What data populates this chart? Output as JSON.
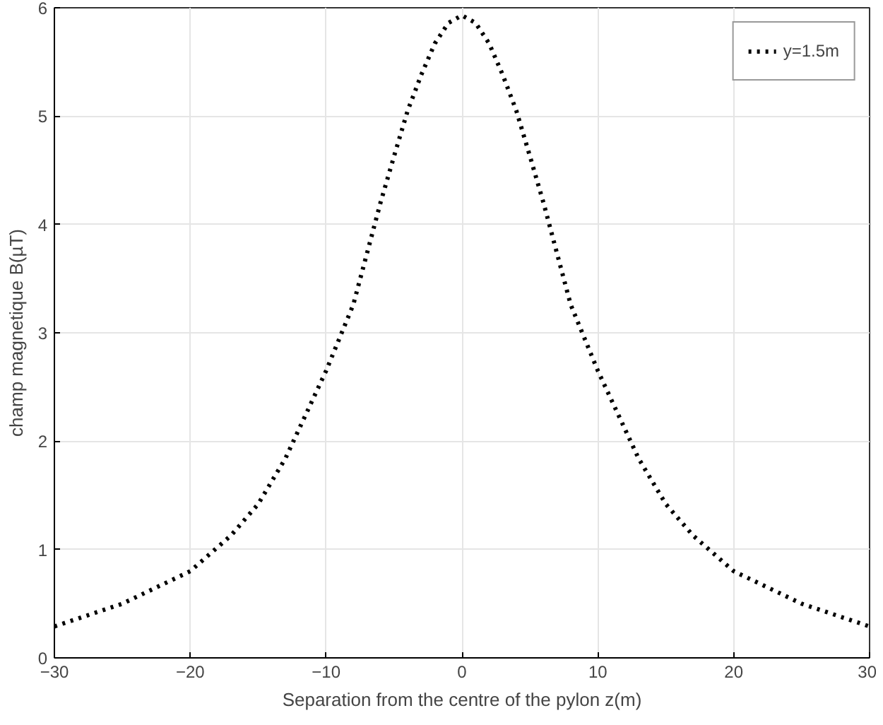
{
  "chart_data": {
    "type": "line",
    "xlabel": "Separation from the centre of the pylon z(m)",
    "ylabel": "champ magnetique B(µT)",
    "xlim": [
      -30,
      30
    ],
    "ylim": [
      0,
      6
    ],
    "xticks": [
      -30,
      -20,
      -10,
      0,
      10,
      20,
      30
    ],
    "yticks": [
      0,
      1,
      2,
      3,
      4,
      5,
      6
    ],
    "grid": true,
    "legend": "top right",
    "line_style": "dotted",
    "marker": "none",
    "series": [
      {
        "name": "y=1.5m",
        "color": "#000000",
        "x": [
          -30,
          -25,
          -20,
          -17,
          -15,
          -13,
          -10,
          -8,
          -7,
          -6,
          -5,
          -4,
          -3,
          -2,
          -1,
          0,
          1,
          2,
          3,
          4,
          5,
          6,
          7,
          8,
          10,
          13,
          15,
          17,
          20,
          25,
          30
        ],
        "values": [
          0.29,
          0.5,
          0.8,
          1.13,
          1.42,
          1.84,
          2.65,
          3.26,
          3.73,
          4.2,
          4.63,
          5.05,
          5.38,
          5.67,
          5.86,
          5.93,
          5.86,
          5.67,
          5.38,
          5.05,
          4.63,
          4.2,
          3.73,
          3.26,
          2.65,
          1.84,
          1.42,
          1.13,
          0.8,
          0.5,
          0.29
        ]
      }
    ]
  }
}
